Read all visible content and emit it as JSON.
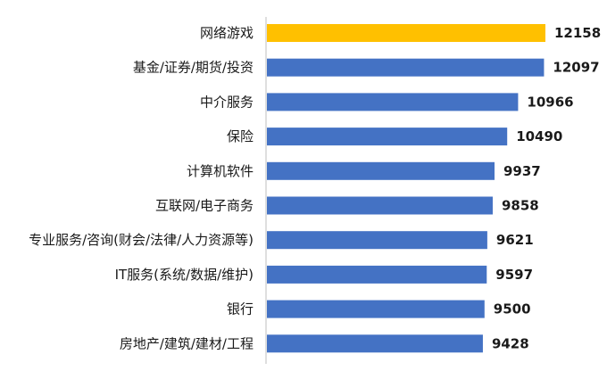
{
  "chart_data": {
    "type": "bar",
    "orientation": "horizontal",
    "title": "",
    "xlabel": "",
    "ylabel": "",
    "categories": [
      "网络游戏",
      "基金/证券/期货/投资",
      "中介服务",
      "保险",
      "计算机软件",
      "互联网/电子商务",
      "专业服务/咨询(财会/法律/人力资源等)",
      "IT服务(系统/数据/维护)",
      "银行",
      "房地产/建筑/建材/工程"
    ],
    "values": [
      12158,
      12097,
      10966,
      10490,
      9937,
      9858,
      9621,
      9597,
      9500,
      9428
    ],
    "value_labels": [
      "12158",
      "12097",
      "10966",
      "10490",
      "9937",
      "9858",
      "9621",
      "9597",
      "9500",
      "9428"
    ],
    "xlim": [
      0,
      12158
    ],
    "grid": false,
    "legend": "none",
    "colors": {
      "default_bar": "#4472C4",
      "highlight_bar": "#FFC000",
      "axis": "#BFBFBF"
    },
    "highlight_index": 0
  }
}
